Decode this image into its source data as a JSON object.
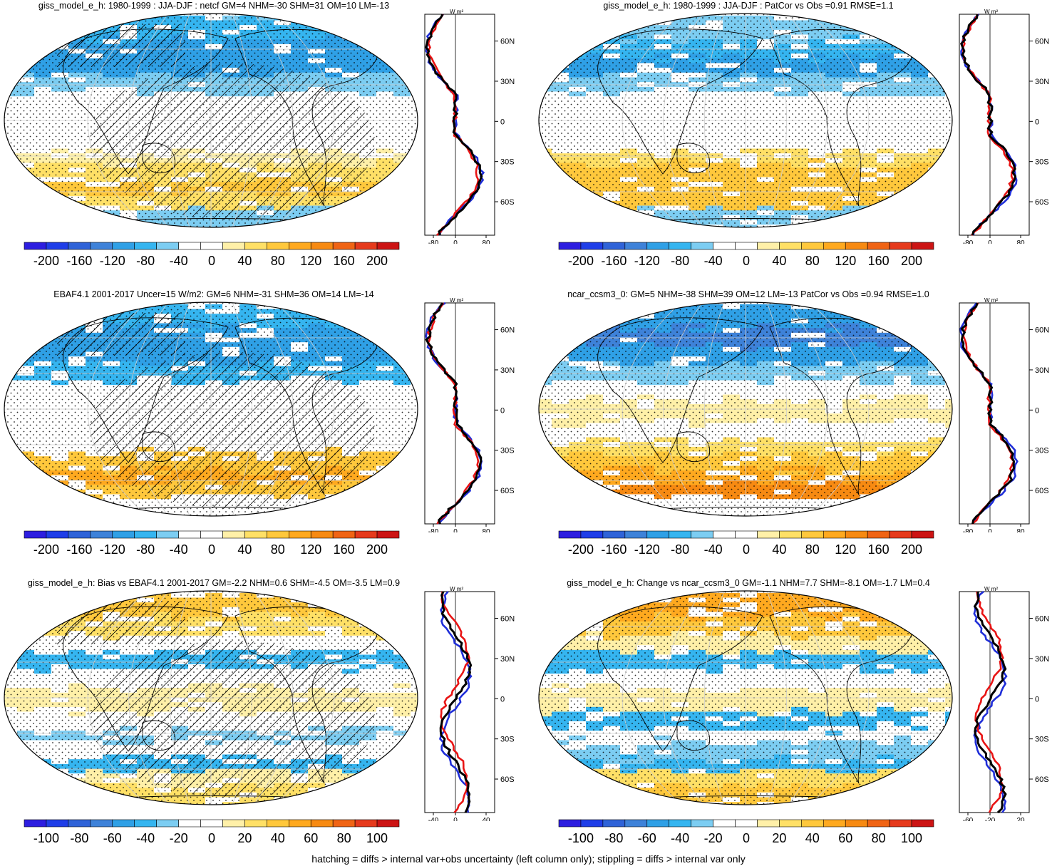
{
  "footer": "hatching = diffs > internal var+obs uncertainty (left column only); stippling = diffs > internal var only",
  "profile_axis": {
    "unit": "W m²",
    "lat_ticks": [
      "60N",
      "30N",
      "0",
      "30S",
      "60S"
    ]
  },
  "colors": {
    "palette": [
      "#2d1ee0",
      "#1f3ee8",
      "#2f63d8",
      "#3e82d9",
      "#2fa0e6",
      "#35b5f0",
      "#7ccdf2",
      "#ffffff",
      "#ffffff",
      "#fff0a8",
      "#ffe066",
      "#ffc83c",
      "#ffa91f",
      "#f78a12",
      "#f06414",
      "#e63a1c",
      "#cc1414"
    ],
    "model": "#000000",
    "obs_blue": "#1f2ed8",
    "obs_red": "#e81414"
  },
  "chart_data": [
    {
      "type": "heatmap",
      "title": "giss_model_e_h: 1980-1999 : JJA-DJF : netcf GM=4 NHM=-30 SHM=31 OM=10 LM=-13",
      "colorbar_ticks": [
        "-200",
        "-160",
        "-120",
        "-80",
        "-40",
        "0",
        "40",
        "80",
        "120",
        "160",
        "200"
      ],
      "zonal_profile_xticks": [
        "-80",
        "0",
        "80"
      ],
      "hatching": true,
      "stippling": true
    },
    {
      "type": "heatmap",
      "title": "giss_model_e_h: 1980-1999 : JJA-DJF : PatCor vs Obs =0.91 RMSE=1.1",
      "colorbar_ticks": [
        "-200",
        "-160",
        "-120",
        "-80",
        "-40",
        "0",
        "40",
        "80",
        "120",
        "160",
        "200"
      ],
      "zonal_profile_xticks": [
        "-80",
        "0",
        "80"
      ],
      "hatching": false,
      "stippling": true
    },
    {
      "type": "heatmap",
      "title": "EBAF4.1 2001-2017 Uncer=15 W/m2: GM=6 NHM=-31 SHM=36 OM=14 LM=-14",
      "colorbar_ticks": [
        "-200",
        "-160",
        "-120",
        "-80",
        "-40",
        "0",
        "40",
        "80",
        "120",
        "160",
        "200"
      ],
      "zonal_profile_xticks": [
        "-80",
        "0",
        "80"
      ],
      "hatching": true,
      "stippling": true
    },
    {
      "type": "heatmap",
      "title": "ncar_ccsm3_0: GM=5 NHM=-38 SHM=39 OM=12 LM=-13 PatCor vs Obs =0.94 RMSE=1.0",
      "colorbar_ticks": [
        "-200",
        "-160",
        "-120",
        "-80",
        "-40",
        "0",
        "40",
        "80",
        "120",
        "160",
        "200"
      ],
      "zonal_profile_xticks": [
        "-80",
        "0",
        "80"
      ],
      "hatching": false,
      "stippling": true
    },
    {
      "type": "heatmap",
      "title": "giss_model_e_h: Bias vs EBAF4.1 2001-2017 GM=-2.2 NHM=0.6 SHM=-4.5 OM=-3.5 LM=0.9",
      "colorbar_ticks": [
        "-100",
        "-80",
        "-60",
        "-40",
        "-20",
        "0",
        "20",
        "40",
        "60",
        "80",
        "100"
      ],
      "zonal_profile_xticks": [
        "-40",
        "0",
        "40"
      ],
      "hatching": true,
      "stippling": true
    },
    {
      "type": "heatmap",
      "title": "giss_model_e_h: Change vs ncar_ccsm3_0 GM=-1.1 NHM=7.7 SHM=-8.1 OM=-1.7 LM=0.4",
      "colorbar_ticks": [
        "-100",
        "-80",
        "-60",
        "-40",
        "-20",
        "0",
        "20",
        "40",
        "60",
        "80",
        "100"
      ],
      "zonal_profile_xticks": [
        "-60",
        "-20",
        "20"
      ],
      "hatching": false,
      "stippling": true
    }
  ]
}
